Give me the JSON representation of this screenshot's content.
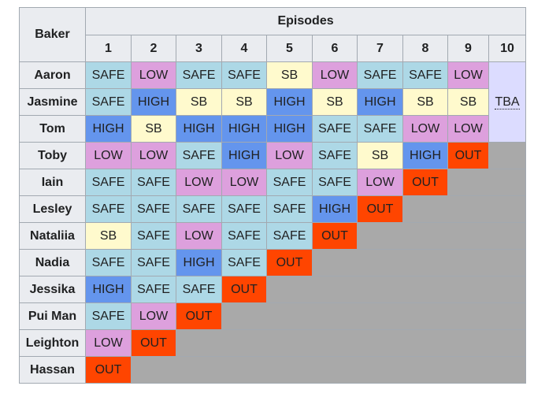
{
  "header": {
    "baker_label": "Baker",
    "episodes_label": "Episodes",
    "episode_numbers": [
      "1",
      "2",
      "3",
      "4",
      "5",
      "6",
      "7",
      "8",
      "9",
      "10"
    ]
  },
  "tba_label": "TBA",
  "rows": [
    {
      "baker": "Aaron",
      "results": [
        "SAFE",
        "LOW",
        "SAFE",
        "SAFE",
        "SB",
        "LOW",
        "SAFE",
        "SAFE",
        "LOW"
      ]
    },
    {
      "baker": "Jasmine",
      "results": [
        "SAFE",
        "HIGH",
        "SB",
        "SB",
        "HIGH",
        "SB",
        "HIGH",
        "SB",
        "SB"
      ]
    },
    {
      "baker": "Tom",
      "results": [
        "HIGH",
        "SB",
        "HIGH",
        "HIGH",
        "HIGH",
        "SAFE",
        "SAFE",
        "LOW",
        "LOW"
      ]
    },
    {
      "baker": "Toby",
      "results": [
        "LOW",
        "LOW",
        "SAFE",
        "HIGH",
        "LOW",
        "SAFE",
        "SB",
        "HIGH",
        "OUT"
      ]
    },
    {
      "baker": "Iain",
      "results": [
        "SAFE",
        "SAFE",
        "LOW",
        "LOW",
        "SAFE",
        "SAFE",
        "LOW",
        "OUT"
      ]
    },
    {
      "baker": "Lesley",
      "results": [
        "SAFE",
        "SAFE",
        "SAFE",
        "SAFE",
        "SAFE",
        "HIGH",
        "OUT"
      ]
    },
    {
      "baker": "Nataliia",
      "results": [
        "SB",
        "SAFE",
        "LOW",
        "SAFE",
        "SAFE",
        "OUT"
      ]
    },
    {
      "baker": "Nadia",
      "results": [
        "SAFE",
        "SAFE",
        "HIGH",
        "SAFE",
        "OUT"
      ]
    },
    {
      "baker": "Jessika",
      "results": [
        "HIGH",
        "SAFE",
        "SAFE",
        "OUT"
      ]
    },
    {
      "baker": "Pui Man",
      "results": [
        "SAFE",
        "LOW",
        "OUT"
      ]
    },
    {
      "baker": "Leighton",
      "results": [
        "LOW",
        "OUT"
      ]
    },
    {
      "baker": "Hassan",
      "results": [
        "OUT"
      ]
    }
  ],
  "colors": {
    "SAFE": "#add8e6",
    "LOW": "#dda0dd",
    "HIGH": "#6495ed",
    "SB": "#fffacd",
    "OUT": "#ff4500",
    "eliminated": "#a9a9a9",
    "tba": "#dcdcff",
    "header": "#eaecf0"
  }
}
